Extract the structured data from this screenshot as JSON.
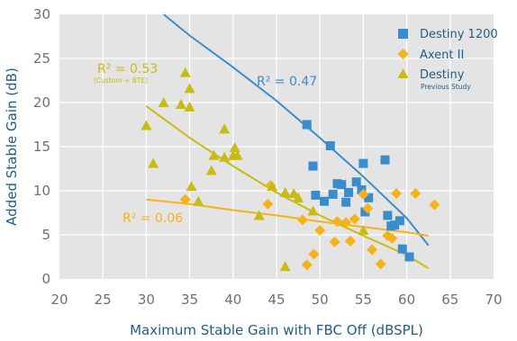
{
  "chart_data": {
    "type": "scatter",
    "title": "",
    "xlabel": "Maximum Stable Gain with FBC Off (dBSPL)",
    "ylabel": "Added Stable Gain (dB)",
    "xlim": [
      20,
      70
    ],
    "ylim": [
      0,
      30
    ],
    "x_ticks": [
      "20",
      "25",
      "30",
      "35",
      "40",
      "45",
      "50",
      "55",
      "60",
      "65",
      "70"
    ],
    "y_ticks": [
      "0",
      "5",
      "10",
      "15",
      "20",
      "25",
      "30"
    ],
    "grid": true,
    "legend_position": "top-right",
    "series": [
      {
        "name": "Destiny 1200",
        "marker": "square",
        "color": "#3a8dcc",
        "points": [
          [
            48.5,
            17.5
          ],
          [
            49.2,
            12.8
          ],
          [
            49.5,
            9.5
          ],
          [
            50.5,
            8.8
          ],
          [
            51.2,
            15.1
          ],
          [
            51.5,
            9.6
          ],
          [
            52.0,
            10.8
          ],
          [
            52.5,
            10.7
          ],
          [
            53.0,
            8.7
          ],
          [
            53.3,
            9.8
          ],
          [
            54.2,
            11.0
          ],
          [
            54.8,
            10.1
          ],
          [
            55.0,
            13.1
          ],
          [
            55.2,
            7.6
          ],
          [
            55.6,
            9.2
          ],
          [
            57.5,
            13.5
          ],
          [
            57.8,
            7.2
          ],
          [
            58.2,
            6.0
          ],
          [
            58.6,
            6.1
          ],
          [
            59.2,
            6.6
          ],
          [
            59.5,
            3.4
          ],
          [
            60.3,
            2.5
          ]
        ]
      },
      {
        "name": "Axent II",
        "marker": "diamond",
        "color": "#f6b21a",
        "points": [
          [
            34.5,
            9.0
          ],
          [
            44.3,
            10.6
          ],
          [
            44.0,
            8.5
          ],
          [
            48.0,
            6.7
          ],
          [
            48.5,
            1.6
          ],
          [
            49.3,
            2.8
          ],
          [
            50.0,
            5.5
          ],
          [
            51.7,
            4.2
          ],
          [
            52.0,
            6.5
          ],
          [
            53.0,
            6.4
          ],
          [
            53.5,
            4.3
          ],
          [
            54.0,
            6.8
          ],
          [
            55.0,
            9.6
          ],
          [
            55.5,
            8.0
          ],
          [
            56.0,
            3.3
          ],
          [
            57.0,
            1.7
          ],
          [
            57.8,
            4.9
          ],
          [
            58.3,
            4.6
          ],
          [
            58.8,
            9.7
          ],
          [
            61.0,
            9.7
          ],
          [
            63.2,
            8.4
          ]
        ]
      },
      {
        "name": "Destiny",
        "sublabel": "Previous Study",
        "marker": "triangle",
        "color": "#c8bb13",
        "points": [
          [
            30.0,
            17.4
          ],
          [
            30.8,
            13.1
          ],
          [
            32.0,
            20.0
          ],
          [
            34.0,
            19.8
          ],
          [
            34.5,
            23.4
          ],
          [
            35.0,
            21.6
          ],
          [
            35.0,
            19.5
          ],
          [
            35.2,
            10.5
          ],
          [
            36.0,
            8.8
          ],
          [
            37.5,
            12.3
          ],
          [
            37.8,
            14.0
          ],
          [
            39.0,
            17.0
          ],
          [
            39.0,
            13.8
          ],
          [
            40.0,
            14.0
          ],
          [
            40.2,
            14.9
          ],
          [
            40.5,
            14.0
          ],
          [
            43.0,
            7.2
          ],
          [
            44.5,
            10.5
          ],
          [
            46.0,
            9.8
          ],
          [
            46.0,
            1.4
          ],
          [
            47.0,
            9.7
          ],
          [
            47.5,
            9.2
          ],
          [
            49.2,
            7.7
          ],
          [
            55.0,
            5.5
          ]
        ]
      }
    ],
    "trendlines": [
      {
        "series": "Destiny 1200",
        "color": "#3a8dcc",
        "x": [
          32,
          35,
          40,
          45,
          50,
          55,
          60,
          62.5
        ],
        "y": [
          30.0,
          27.6,
          24.0,
          20.2,
          16.0,
          11.6,
          6.9,
          3.8
        ]
      },
      {
        "series": "Axent II",
        "color": "#f6b21a",
        "x": [
          30,
          35,
          40,
          45,
          50,
          55,
          60,
          62.5
        ],
        "y": [
          9.0,
          8.5,
          7.8,
          7.2,
          6.5,
          5.9,
          5.3,
          4.9
        ]
      },
      {
        "series": "Destiny",
        "color": "#c8bb13",
        "x": [
          30,
          35,
          40,
          45,
          50,
          55,
          60,
          62.5
        ],
        "y": [
          19.6,
          16.0,
          12.8,
          9.8,
          7.2,
          4.9,
          2.7,
          1.2
        ]
      }
    ],
    "annotations": [
      {
        "key": "r2_destiny1200",
        "text": "R² = 0.47",
        "color": "#3a8dcc",
        "x": 42.5,
        "y": 21.0
      },
      {
        "key": "r2_destiny",
        "text": "R² = 0.53",
        "sub": "(Custom + BTE)",
        "color": "#c8bb13",
        "x": 30.5,
        "y": 23.0
      },
      {
        "key": "r2_axent",
        "text": "R² = 0.06",
        "color": "#f6b21a",
        "x": 27.0,
        "y": 6.3
      }
    ]
  }
}
